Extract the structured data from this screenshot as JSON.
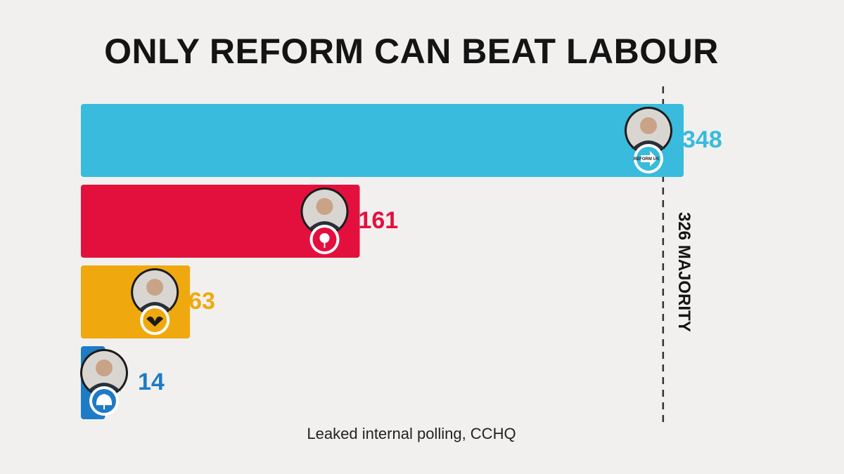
{
  "chart_data": {
    "type": "bar",
    "orientation": "horizontal",
    "title": "ONLY REFORM CAN BEAT LABOUR",
    "source": "Leaked internal polling, CCHQ",
    "categories": [
      "Reform UK",
      "Labour",
      "Liberal Democrats",
      "Conservatives"
    ],
    "values": [
      348,
      161,
      63,
      14
    ],
    "colors": [
      "#38bbdd",
      "#e3103e",
      "#efa90f",
      "#1e7bc6"
    ],
    "bar_icons": [
      {
        "portrait": "leader-portrait-icon",
        "logo": "reform-uk-arrow-icon",
        "logo_text": "REFORM UK"
      },
      {
        "portrait": "leader-portrait-icon",
        "logo": "labour-rose-icon"
      },
      {
        "portrait": "leader-portrait-icon",
        "logo": "lib-dem-bird-icon"
      },
      {
        "portrait": "leader-portrait-icon",
        "logo": "conservative-tree-icon"
      }
    ],
    "reference_line": {
      "value": 326,
      "label": "326 MAJORITY",
      "style": "dashed"
    },
    "grid": false,
    "legend": "none"
  }
}
